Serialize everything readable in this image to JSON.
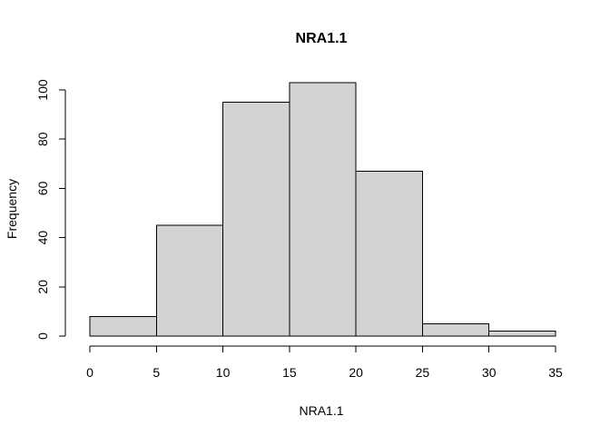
{
  "chart_data": {
    "type": "bar",
    "subtype": "histogram",
    "title": "NRA1.1",
    "xlabel": "NRA1.1",
    "ylabel": "Frequency",
    "bins": [
      [
        0,
        5
      ],
      [
        5,
        10
      ],
      [
        10,
        15
      ],
      [
        15,
        20
      ],
      [
        20,
        25
      ],
      [
        25,
        30
      ],
      [
        30,
        35
      ]
    ],
    "values": [
      8,
      45,
      95,
      103,
      67,
      5,
      2
    ],
    "xlim": [
      0,
      35
    ],
    "ylim": [
      0,
      100
    ],
    "xticks": [
      0,
      5,
      10,
      15,
      20,
      25,
      30,
      35
    ],
    "yticks": [
      0,
      20,
      40,
      60,
      80,
      100
    ],
    "bar_fill": "#d3d3d3",
    "bar_stroke": "#000000",
    "grid": false,
    "legend": "none"
  }
}
